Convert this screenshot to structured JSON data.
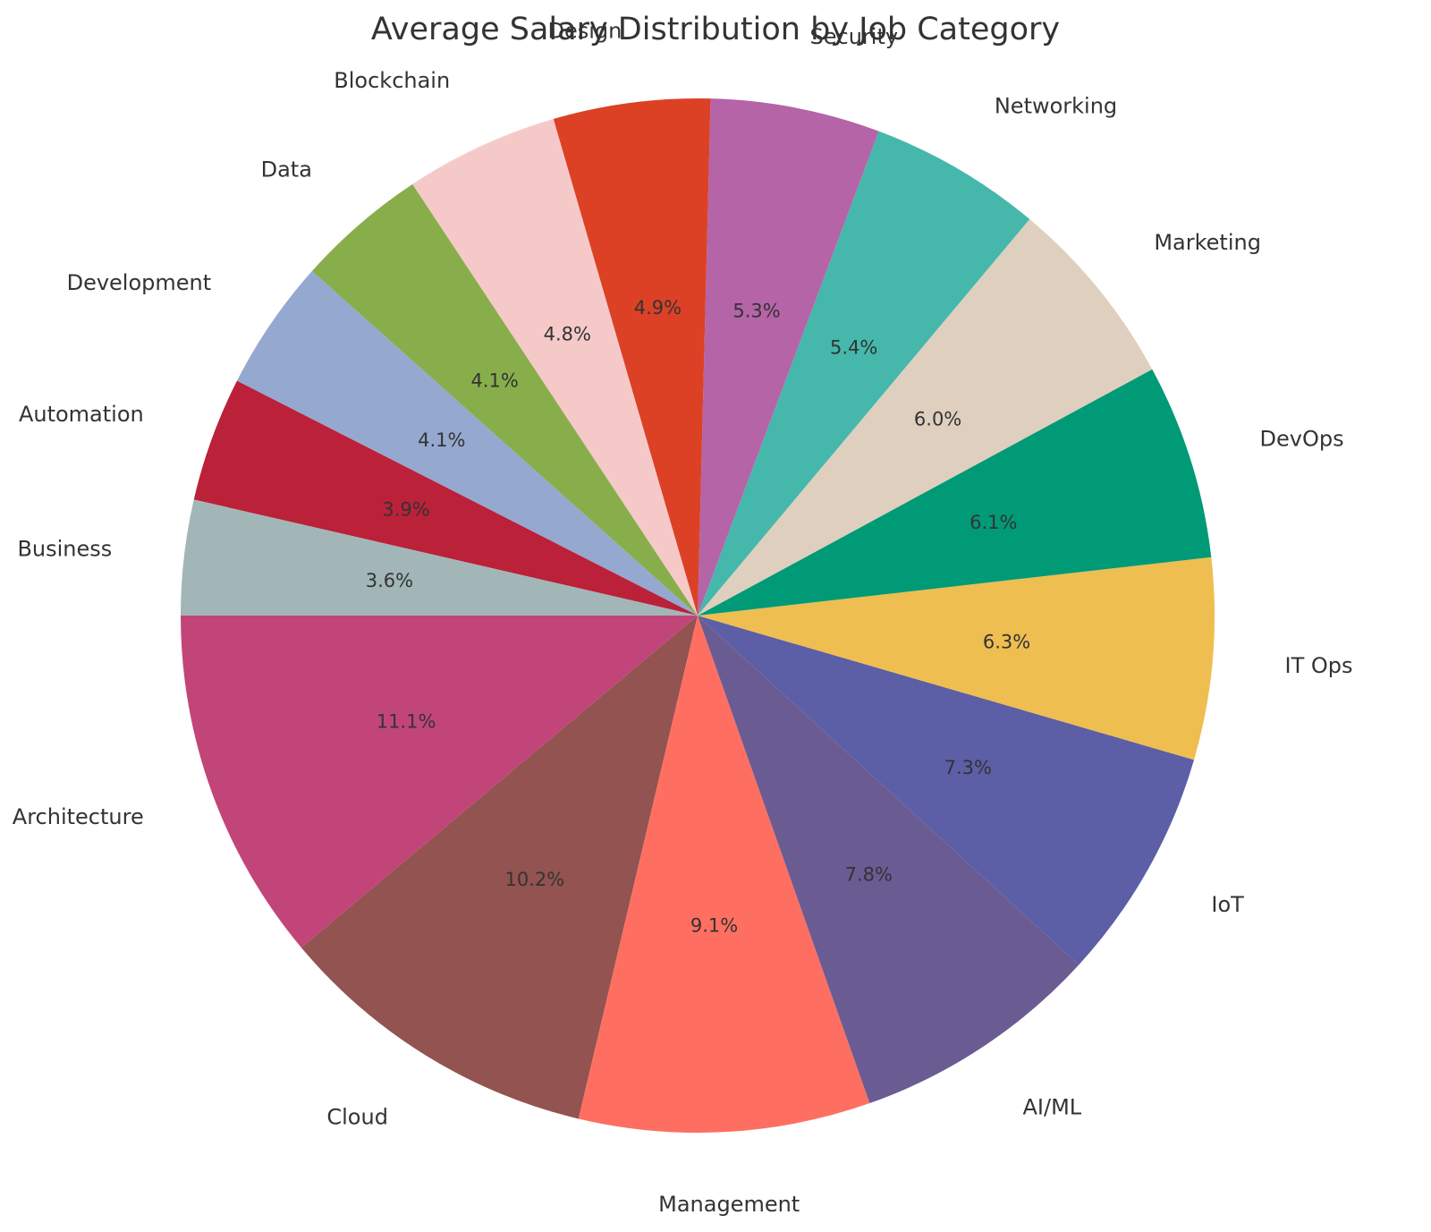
{
  "chart_data": {
    "type": "pie",
    "title": "Average Salary Distribution by Job Category",
    "categories": [
      "Architecture",
      "Cloud",
      "Management",
      "AI/ML",
      "IoT",
      "IT Ops",
      "DevOps",
      "Marketing",
      "Networking",
      "Security",
      "Design",
      "Blockchain",
      "Data",
      "Development",
      "Automation",
      "Business"
    ],
    "values": [
      11.1,
      10.2,
      9.1,
      7.8,
      7.3,
      6.3,
      6.1,
      6.0,
      5.4,
      5.3,
      4.9,
      4.8,
      4.1,
      4.1,
      3.9,
      3.6
    ],
    "value_labels": [
      "11.1%",
      "10.2%",
      "9.1%",
      "7.8%",
      "7.3%",
      "6.3%",
      "6.1%",
      "6.0%",
      "5.4%",
      "5.3%",
      "4.9%",
      "4.8%",
      "4.1%",
      "4.1%",
      "3.9%",
      "3.6%"
    ],
    "colors": [
      "#c2457a",
      "#935350",
      "#fe6f62",
      "#6b5b93",
      "#5c5ea6",
      "#efbe50",
      "#019a77",
      "#dfcfbe",
      "#45b8ab",
      "#b464a7",
      "#dc4126",
      "#f6c9c9",
      "#88ae4b",
      "#95a8d0",
      "#bb2139",
      "#a2b6b8"
    ],
    "start_angle_deg": 180,
    "direction": "counterclockwise",
    "legend": "none"
  }
}
